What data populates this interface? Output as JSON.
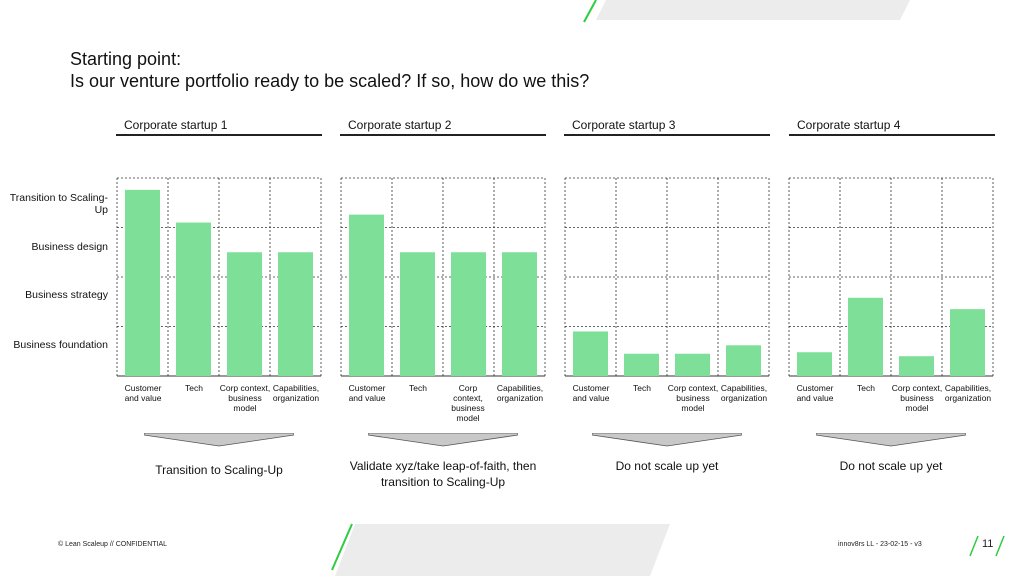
{
  "title": {
    "line1": "Starting point:",
    "line2": "Is our venture portfolio ready to be scaled? If so, how do we this?"
  },
  "y_levels": [
    "Transition to Scaling-Up",
    "Business design",
    "Business strategy",
    "Business foundation"
  ],
  "footer": {
    "left": "© Lean Scaleup  // CONFIDENTIAL",
    "right": "innov8rs LL - 23-02-15 - v3",
    "page": "11"
  },
  "colors": {
    "bar": "#7ddf98",
    "accent": "#2ecc40",
    "grid": "#333333",
    "arrow": "#c8c8c8"
  },
  "chart_data": [
    {
      "type": "bar",
      "title": "Corporate startup 1",
      "categories": [
        "Customer and value",
        "Tech",
        "Corp context, business model",
        "Capabilities, organization"
      ],
      "values": [
        3.76,
        3.1,
        2.5,
        2.5
      ],
      "ylim": [
        0,
        4
      ],
      "conclusion": "Transition to Scaling-Up"
    },
    {
      "type": "bar",
      "title": "Corporate startup 2",
      "categories": [
        "Customer and value",
        "Tech",
        "Corp context, business model",
        "Capabilities, organization"
      ],
      "values": [
        3.26,
        2.5,
        2.5,
        2.5
      ],
      "ylim": [
        0,
        4
      ],
      "conclusion": "Validate xyz/take leap-of-faith, then transition to Scaling-Up"
    },
    {
      "type": "bar",
      "title": "Corporate startup 3",
      "categories": [
        "Customer and value",
        "Tech",
        "Corp context, business model",
        "Capabilities, organization"
      ],
      "values": [
        0.9,
        0.45,
        0.45,
        0.62
      ],
      "ylim": [
        0,
        4
      ],
      "conclusion": "Do not scale up yet"
    },
    {
      "type": "bar",
      "title": "Corporate startup 4",
      "categories": [
        "Customer and value",
        "Tech",
        "Corp context, business model",
        "Capabilities, organization"
      ],
      "values": [
        0.48,
        1.58,
        0.4,
        1.35
      ],
      "ylim": [
        0,
        4
      ],
      "conclusion": "Do not scale up yet"
    }
  ]
}
